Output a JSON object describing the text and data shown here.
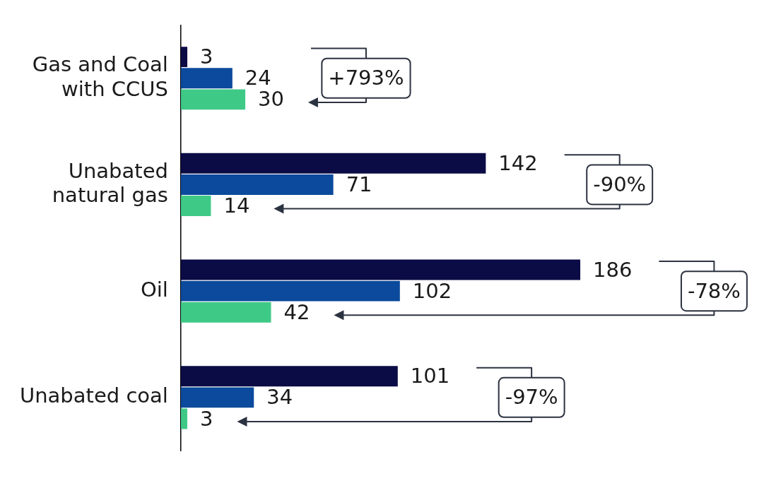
{
  "chart_data": {
    "type": "bar",
    "orientation": "horizontal",
    "categories": [
      "Gas and Coal with CCUS",
      "Unabated natural gas",
      "Oil",
      "Unabated coal"
    ],
    "series": [
      {
        "color": "#0b0b45",
        "values": [
          3,
          142,
          186,
          101
        ]
      },
      {
        "color": "#0b4a9c",
        "values": [
          24,
          71,
          102,
          34
        ]
      },
      {
        "color": "#3fc987",
        "values": [
          30,
          14,
          42,
          3
        ]
      }
    ],
    "data_labels": true,
    "grid": false,
    "legend": false,
    "tick_labels": "y",
    "annotations": [
      "+793%",
      "-90%",
      "-78%",
      "-97%"
    ]
  }
}
